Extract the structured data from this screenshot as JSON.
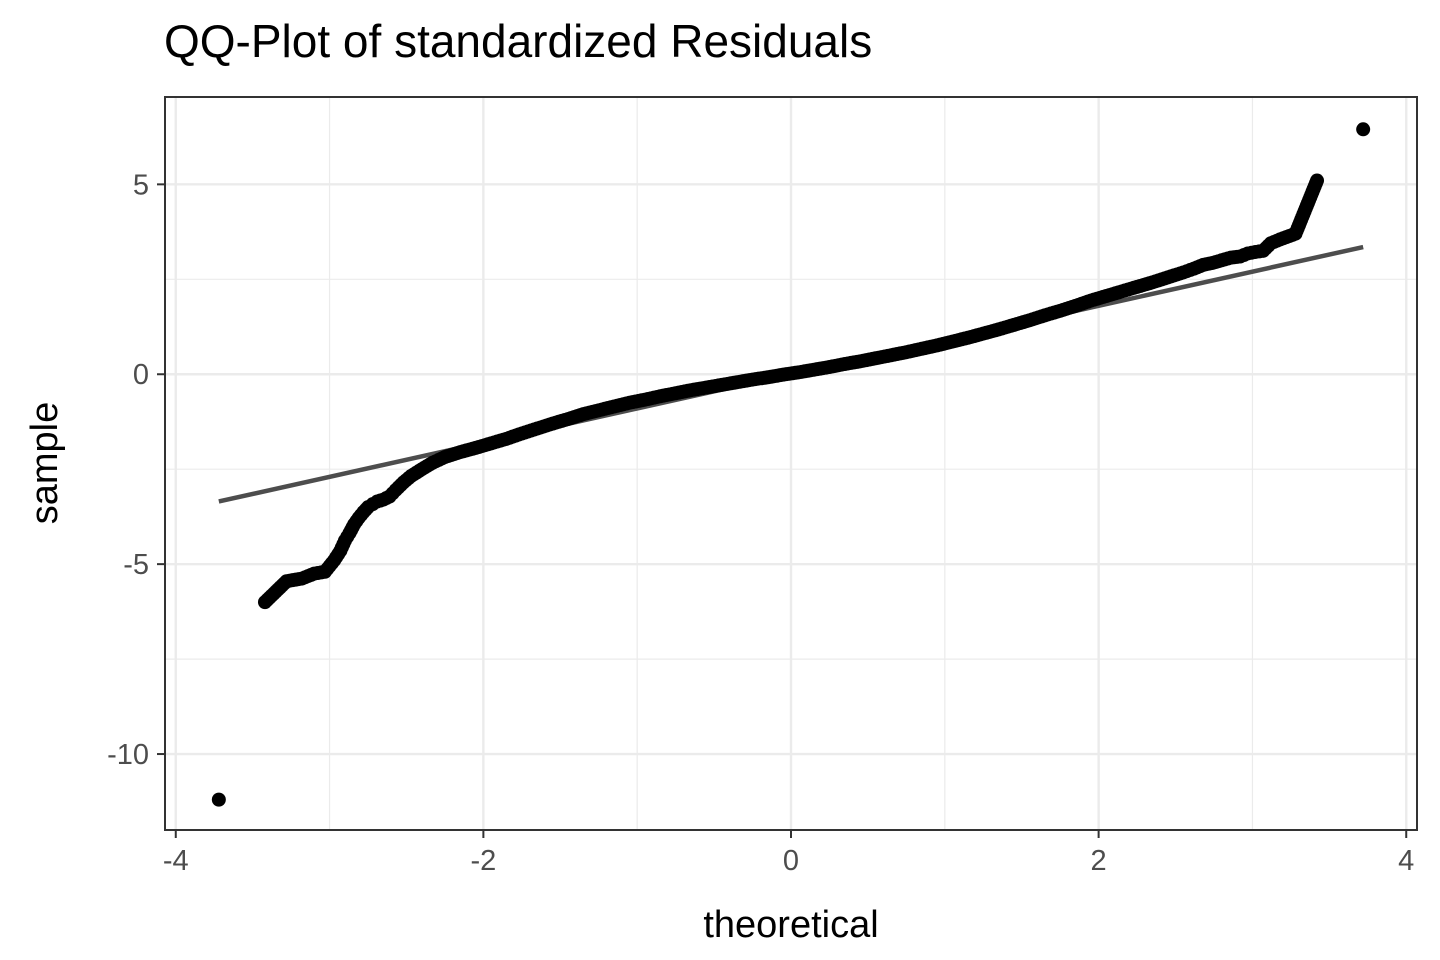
{
  "chart_data": {
    "type": "scatter",
    "title": "QQ-Plot of standardized Residuals",
    "xlabel": "theoretical",
    "ylabel": "sample",
    "xlim": [
      -4.07,
      4.07
    ],
    "ylim": [
      -12.0,
      7.3
    ],
    "x_ticks": [
      -4,
      -2,
      0,
      2,
      4
    ],
    "x_tick_labels": [
      "-4",
      "-2",
      "0",
      "2",
      "4"
    ],
    "y_ticks": [
      -10,
      -5,
      0,
      5
    ],
    "y_tick_labels": [
      "-10",
      "-5",
      "0",
      "5"
    ],
    "grid": true,
    "legend": "none",
    "colors": {
      "points": "#000000",
      "line": "#4d4d4d",
      "grid": "#ebebeb",
      "panel_border": "#333333"
    },
    "reference_line": {
      "x": [
        -3.72,
        3.72
      ],
      "y": [
        -3.35,
        3.35
      ]
    },
    "points": {
      "x": [
        -3.72,
        -3.42,
        -3.28,
        -3.18,
        -3.1,
        -3.03,
        -2.97,
        -2.93,
        -2.9,
        -2.87,
        -2.84,
        -2.81,
        -2.78,
        -2.75,
        -2.72,
        -2.69,
        -2.65,
        -2.61,
        -2.57,
        -2.52,
        -2.47,
        -2.4,
        -2.33,
        -2.25,
        -2.15,
        -2.05,
        -1.95,
        -1.85,
        -1.75,
        -1.65,
        -1.55,
        -1.45,
        -1.35,
        -1.25,
        -1.15,
        -1.05,
        -0.95,
        -0.85,
        -0.75,
        -0.65,
        -0.55,
        -0.45,
        -0.35,
        -0.25,
        -0.15,
        -0.05,
        0.05,
        0.15,
        0.25,
        0.35,
        0.45,
        0.55,
        0.65,
        0.75,
        0.85,
        0.95,
        1.05,
        1.15,
        1.25,
        1.35,
        1.45,
        1.55,
        1.65,
        1.75,
        1.85,
        1.95,
        2.05,
        2.15,
        2.25,
        2.35,
        2.45,
        2.55,
        2.62,
        2.68,
        2.74,
        2.8,
        2.86,
        2.92,
        2.97,
        3.02,
        3.07,
        3.12,
        3.18,
        3.28,
        3.42,
        3.72
      ],
      "y": [
        -11.2,
        -6.0,
        -5.45,
        -5.38,
        -5.25,
        -5.2,
        -4.9,
        -4.65,
        -4.38,
        -4.18,
        -3.95,
        -3.78,
        -3.63,
        -3.5,
        -3.42,
        -3.35,
        -3.3,
        -3.22,
        -3.05,
        -2.85,
        -2.68,
        -2.5,
        -2.33,
        -2.18,
        -2.05,
        -1.94,
        -1.82,
        -1.7,
        -1.56,
        -1.43,
        -1.3,
        -1.18,
        -1.05,
        -0.95,
        -0.85,
        -0.75,
        -0.67,
        -0.58,
        -0.5,
        -0.42,
        -0.35,
        -0.28,
        -0.21,
        -0.14,
        -0.08,
        -0.01,
        0.05,
        0.12,
        0.19,
        0.27,
        0.34,
        0.42,
        0.5,
        0.58,
        0.67,
        0.76,
        0.86,
        0.96,
        1.07,
        1.18,
        1.3,
        1.42,
        1.55,
        1.67,
        1.8,
        1.94,
        2.06,
        2.18,
        2.3,
        2.42,
        2.55,
        2.68,
        2.78,
        2.88,
        2.93,
        3.0,
        3.07,
        3.1,
        3.18,
        3.22,
        3.25,
        3.45,
        3.55,
        3.7,
        5.1,
        6.45
      ]
    }
  }
}
